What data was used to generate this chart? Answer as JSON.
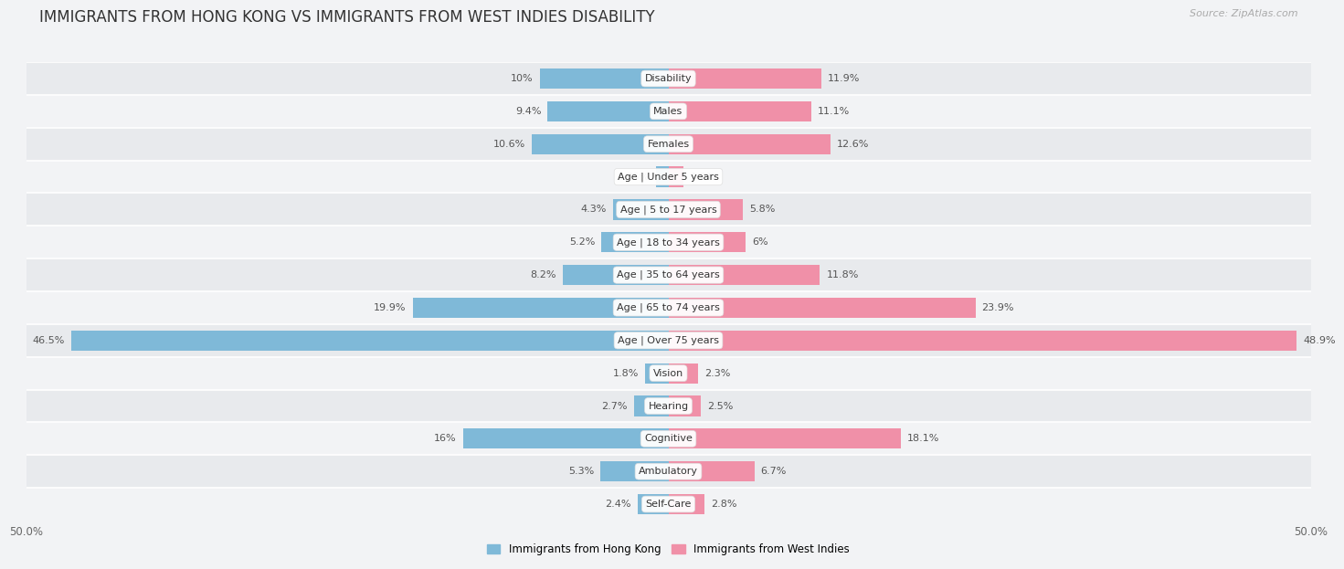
{
  "title": "IMMIGRANTS FROM HONG KONG VS IMMIGRANTS FROM WEST INDIES DISABILITY",
  "source": "Source: ZipAtlas.com",
  "categories": [
    "Disability",
    "Males",
    "Females",
    "Age | Under 5 years",
    "Age | 5 to 17 years",
    "Age | 18 to 34 years",
    "Age | 35 to 64 years",
    "Age | 65 to 74 years",
    "Age | Over 75 years",
    "Vision",
    "Hearing",
    "Cognitive",
    "Ambulatory",
    "Self-Care"
  ],
  "left_values": [
    10.0,
    9.4,
    10.6,
    0.95,
    4.3,
    5.2,
    8.2,
    19.9,
    46.5,
    1.8,
    2.7,
    16.0,
    5.3,
    2.4
  ],
  "right_values": [
    11.9,
    11.1,
    12.6,
    1.2,
    5.8,
    6.0,
    11.8,
    23.9,
    48.9,
    2.3,
    2.5,
    18.1,
    6.7,
    2.8
  ],
  "left_color": "#7fb9d8",
  "right_color": "#f090a8",
  "left_label": "Immigrants from Hong Kong",
  "right_label": "Immigrants from West Indies",
  "axis_limit": 50.0,
  "row_color_even": "#e8eaed",
  "row_color_odd": "#f2f3f5",
  "title_fontsize": 12,
  "label_fontsize": 8.5,
  "cat_fontsize": 8,
  "value_fontsize": 8,
  "source_fontsize": 8
}
